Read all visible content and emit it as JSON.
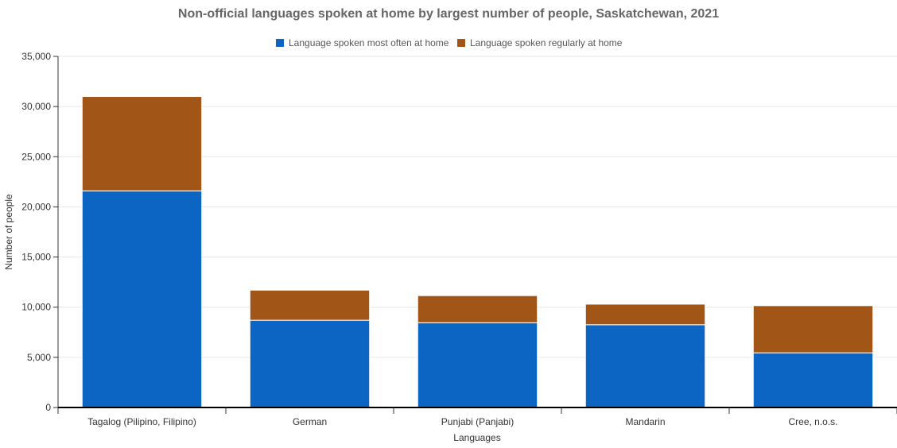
{
  "chart_data": {
    "type": "bar",
    "stacked": true,
    "title": "Non-official languages spoken at home by largest number of people, Saskatchewan, 2021",
    "xlabel": "Languages",
    "ylabel": "Number of people",
    "categories": [
      "Tagalog (Pilipino, Filipino)",
      "German",
      "Punjabi (Panjabi)",
      "Mandarin",
      "Cree, n.o.s."
    ],
    "series": [
      {
        "name": "Language spoken most often at home",
        "color": "#0d65c3",
        "values": [
          21600,
          8700,
          8450,
          8250,
          5450
        ]
      },
      {
        "name": "Language spoken regularly at home",
        "color": "#a15618",
        "values": [
          9400,
          3000,
          2700,
          2050,
          4700
        ]
      }
    ],
    "ylim": [
      0,
      35000
    ],
    "yticks": [
      0,
      5000,
      10000,
      15000,
      20000,
      25000,
      30000,
      35000
    ],
    "ytick_labels": [
      "0",
      "5,000",
      "10,000",
      "15,000",
      "20,000",
      "25,000",
      "30,000",
      "35,000"
    ],
    "grid": true,
    "legend_position": "top-center"
  }
}
